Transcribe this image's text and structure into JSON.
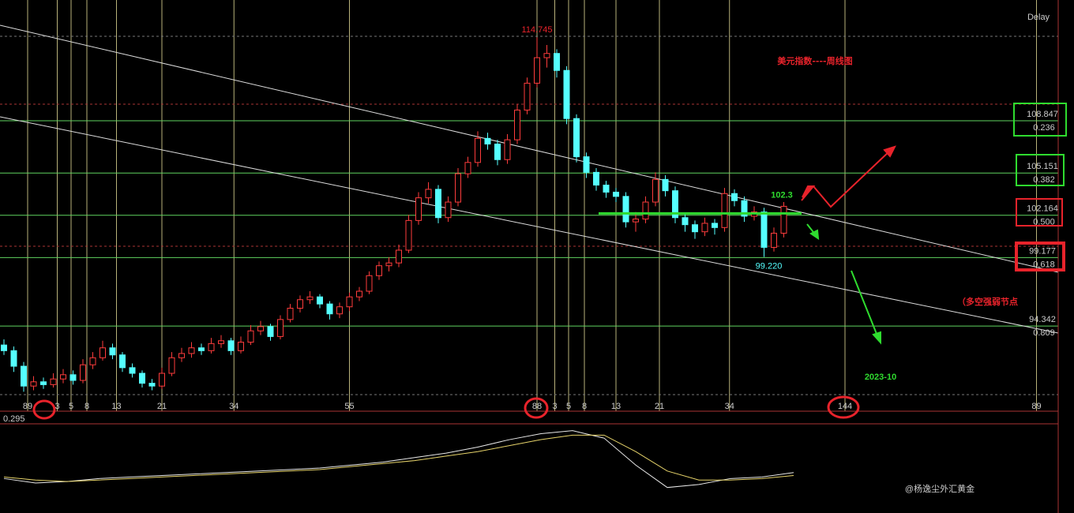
{
  "chart_data": {
    "type": "candlestick",
    "title": "美元指数----周线图",
    "status": "Delay",
    "up_color": "#ff3c3c",
    "down_color": "#55ffff",
    "xlim": [
      -0.4,
      106.8
    ],
    "ylim": [
      88.38,
      116.54
    ],
    "candles": [
      [
        93.0,
        93.4,
        92.3,
        92.6
      ],
      [
        92.6,
        92.9,
        91.1,
        91.5
      ],
      [
        91.5,
        91.8,
        89.7,
        90.1
      ],
      [
        90.1,
        90.8,
        89.8,
        90.4
      ],
      [
        90.4,
        90.7,
        89.9,
        90.2
      ],
      [
        90.2,
        91.0,
        90.0,
        90.6
      ],
      [
        90.6,
        91.3,
        90.3,
        90.9
      ],
      [
        90.9,
        91.2,
        90.2,
        90.5
      ],
      [
        90.5,
        92.0,
        90.3,
        91.6
      ],
      [
        91.6,
        92.5,
        91.3,
        92.1
      ],
      [
        92.1,
        93.3,
        91.9,
        92.8
      ],
      [
        92.8,
        93.1,
        92.0,
        92.3
      ],
      [
        92.3,
        92.5,
        91.1,
        91.4
      ],
      [
        91.4,
        91.7,
        90.7,
        91.0
      ],
      [
        91.0,
        91.2,
        90.0,
        90.3
      ],
      [
        90.3,
        90.6,
        89.8,
        90.1
      ],
      [
        90.1,
        91.4,
        89.9,
        91.0
      ],
      [
        91.0,
        92.5,
        90.8,
        92.1
      ],
      [
        92.1,
        92.8,
        91.8,
        92.4
      ],
      [
        92.4,
        93.2,
        92.1,
        92.8
      ],
      [
        92.8,
        93.1,
        92.3,
        92.6
      ],
      [
        92.6,
        93.5,
        92.4,
        93.1
      ],
      [
        93.1,
        93.7,
        92.8,
        93.3
      ],
      [
        93.3,
        93.5,
        92.3,
        92.6
      ],
      [
        92.6,
        93.6,
        92.4,
        93.2
      ],
      [
        93.2,
        94.4,
        93.0,
        94.0
      ],
      [
        94.0,
        94.7,
        93.7,
        94.3
      ],
      [
        94.3,
        94.5,
        93.3,
        93.6
      ],
      [
        93.6,
        95.1,
        93.4,
        94.8
      ],
      [
        94.8,
        95.9,
        94.6,
        95.6
      ],
      [
        95.6,
        96.5,
        95.3,
        96.2
      ],
      [
        96.2,
        96.8,
        95.9,
        96.4
      ],
      [
        96.4,
        96.6,
        95.6,
        95.9
      ],
      [
        95.9,
        96.1,
        94.8,
        95.2
      ],
      [
        95.2,
        96.0,
        94.9,
        95.7
      ],
      [
        95.7,
        96.7,
        95.4,
        96.4
      ],
      [
        96.4,
        97.1,
        96.1,
        96.8
      ],
      [
        96.8,
        98.2,
        96.6,
        97.9
      ],
      [
        97.9,
        98.9,
        97.6,
        98.6
      ],
      [
        98.6,
        99.2,
        98.2,
        98.8
      ],
      [
        98.8,
        100.1,
        98.5,
        99.7
      ],
      [
        99.7,
        102.2,
        99.5,
        101.8
      ],
      [
        101.8,
        103.8,
        101.5,
        103.4
      ],
      [
        103.4,
        104.5,
        103.0,
        104.0
      ],
      [
        104.0,
        104.3,
        101.6,
        102.0
      ],
      [
        102.0,
        103.5,
        101.7,
        103.1
      ],
      [
        103.1,
        105.5,
        102.8,
        105.1
      ],
      [
        105.1,
        106.3,
        104.8,
        105.9
      ],
      [
        105.9,
        108.1,
        105.6,
        107.6
      ],
      [
        107.6,
        108.0,
        106.8,
        107.2
      ],
      [
        107.2,
        107.5,
        105.7,
        106.1
      ],
      [
        106.1,
        107.9,
        105.8,
        107.5
      ],
      [
        107.5,
        110.0,
        107.2,
        109.6
      ],
      [
        109.6,
        111.9,
        109.3,
        111.5
      ],
      [
        111.5,
        114.745,
        111.2,
        113.3
      ],
      [
        113.3,
        114.2,
        112.6,
        113.6
      ],
      [
        113.6,
        113.9,
        111.9,
        112.4
      ],
      [
        112.4,
        112.7,
        108.6,
        109.0
      ],
      [
        109.0,
        109.3,
        105.9,
        106.3
      ],
      [
        106.3,
        106.6,
        104.8,
        105.2
      ],
      [
        105.2,
        105.5,
        103.9,
        104.3
      ],
      [
        104.3,
        104.6,
        103.4,
        103.8
      ],
      [
        103.8,
        104.1,
        103.1,
        103.5
      ],
      [
        103.5,
        103.8,
        101.3,
        101.7
      ],
      [
        101.7,
        102.4,
        101.0,
        101.9
      ],
      [
        101.9,
        103.5,
        101.6,
        103.1
      ],
      [
        103.1,
        105.2,
        102.8,
        104.7
      ],
      [
        104.7,
        105.0,
        103.5,
        103.9
      ],
      [
        103.9,
        104.2,
        101.6,
        102.0
      ],
      [
        102.0,
        102.3,
        101.0,
        101.5
      ],
      [
        101.5,
        101.8,
        100.5,
        101.0
      ],
      [
        101.0,
        102.0,
        100.7,
        101.6
      ],
      [
        101.6,
        101.9,
        100.8,
        101.3
      ],
      [
        101.3,
        104.1,
        101.0,
        103.7
      ],
      [
        103.7,
        104.0,
        102.8,
        103.2
      ],
      [
        103.2,
        103.5,
        101.7,
        102.1
      ],
      [
        102.1,
        102.8,
        101.8,
        102.4
      ],
      [
        102.4,
        102.7,
        99.22,
        99.9
      ],
      [
        99.9,
        101.3,
        99.6,
        100.9
      ],
      [
        100.9,
        103.1,
        100.6,
        102.8
      ]
    ],
    "high_label": {
      "label": "114.745",
      "candle": 54
    },
    "low_label": {
      "label": "99.220",
      "candle": 77
    },
    "levels": [
      {
        "price": 108.847,
        "ratio": "0.236"
      },
      {
        "price": 105.151,
        "ratio": "0.382"
      },
      {
        "price": 102.164,
        "ratio": "0.500"
      },
      {
        "price": 99.177,
        "ratio": "0.618"
      },
      {
        "price": 94.342,
        "ratio": "0.809"
      }
    ],
    "resistance": 102.3,
    "target_label": "2023-10",
    "node_label": "（多空强弱节点",
    "xticks": [
      {
        "value": 2.4,
        "label": "89"
      },
      {
        "value": 5.4,
        "label": "3"
      },
      {
        "value": 6.8,
        "label": "5"
      },
      {
        "value": 8.4,
        "label": "8"
      },
      {
        "value": 11.4,
        "label": "13"
      },
      {
        "value": 16.0,
        "label": "21"
      },
      {
        "value": 23.3,
        "label": "34"
      },
      {
        "value": 35.0,
        "label": "55"
      },
      {
        "value": 54.0,
        "label": "88"
      },
      {
        "value": 55.8,
        "label": "3"
      },
      {
        "value": 57.2,
        "label": "5"
      },
      {
        "value": 58.8,
        "label": "8"
      },
      {
        "value": 62.0,
        "label": "13"
      },
      {
        "value": 66.4,
        "label": "21"
      },
      {
        "value": 73.5,
        "label": "34"
      },
      {
        "value": 85.2,
        "label": "144"
      },
      {
        "value": 104.6,
        "label": "89"
      }
    ],
    "macd": {
      "top_label": 0.295,
      "ylim": [
        -2.5,
        3.2
      ],
      "dif": [
        -0.3,
        -0.6,
        -0.5,
        -0.3,
        -0.2,
        -0.1,
        0,
        0.1,
        0.2,
        0.3,
        0.4,
        0.6,
        0.8,
        1.1,
        1.4,
        1.8,
        2.3,
        2.7,
        2.9,
        2.4,
        0.6,
        -0.9,
        -0.7,
        -0.3,
        -0.2,
        0.1
      ],
      "dea": [
        -0.2,
        -0.4,
        -0.5,
        -0.4,
        -0.3,
        -0.2,
        -0.1,
        0,
        0.1,
        0.2,
        0.3,
        0.5,
        0.7,
        0.9,
        1.2,
        1.5,
        1.9,
        2.3,
        2.6,
        2.6,
        1.5,
        0.2,
        -0.4,
        -0.4,
        -0.3,
        -0.1
      ]
    },
    "watermark": "@杨逸尘外汇黄金"
  }
}
